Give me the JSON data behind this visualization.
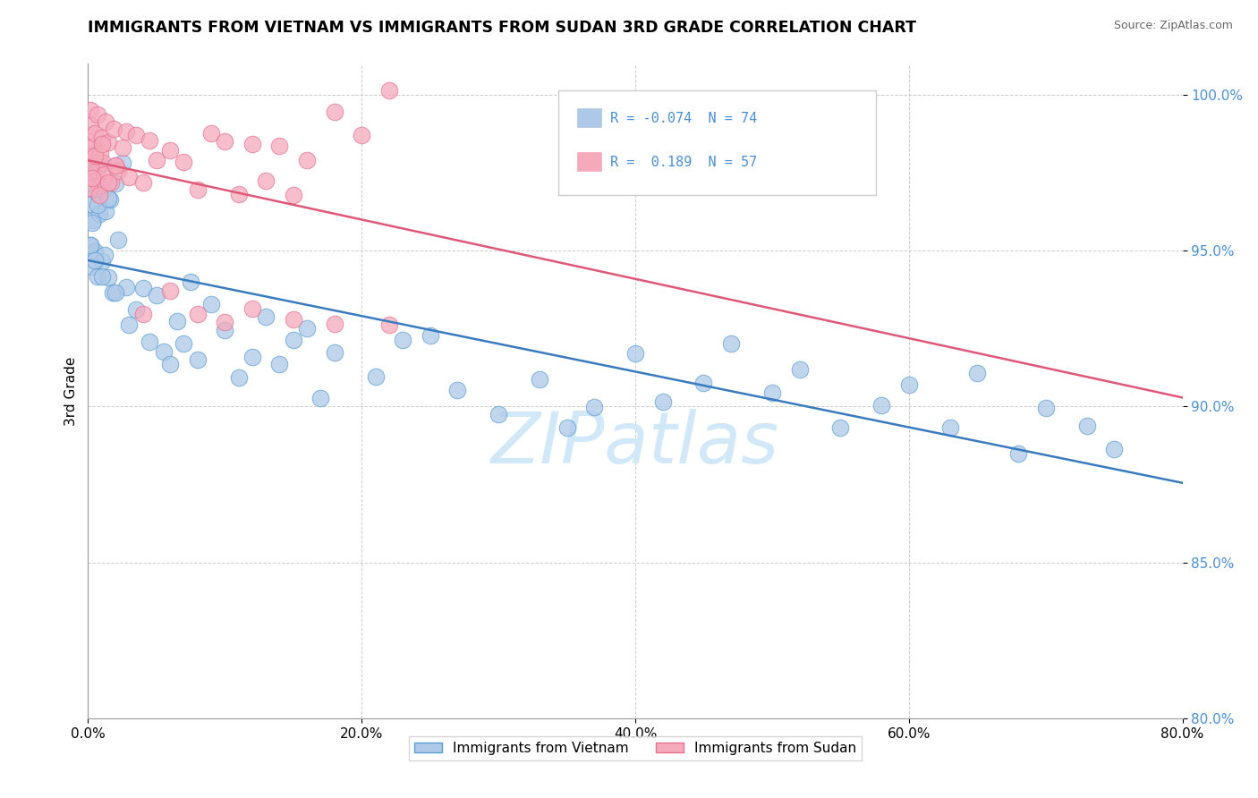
{
  "title": "IMMIGRANTS FROM VIETNAM VS IMMIGRANTS FROM SUDAN 3RD GRADE CORRELATION CHART",
  "source": "Source: ZipAtlas.com",
  "ylabel": "3rd Grade",
  "legend_label1": "Immigrants from Vietnam",
  "legend_label2": "Immigrants from Sudan",
  "legend_R1": "-0.074",
  "legend_N1": "74",
  "legend_R2": " 0.189",
  "legend_N2": "57",
  "xlim": [
    0.0,
    80.0
  ],
  "ylim": [
    80.0,
    101.0
  ],
  "xtick_values": [
    0,
    20,
    40,
    60,
    80
  ],
  "xtick_labels": [
    "0.0%",
    "20.0%",
    "40.0%",
    "60.0%",
    "80.0%"
  ],
  "ytick_values": [
    80,
    85,
    90,
    95,
    100
  ],
  "ytick_labels": [
    "80.0%",
    "85.0%",
    "90.0%",
    "95.0%",
    "100.0%"
  ],
  "color_vietnam": "#adc8e8",
  "color_sudan": "#f5aabc",
  "edge_vietnam": "#5a9fd4",
  "edge_sudan": "#e87090",
  "trendline_vietnam": "#3a7bbf",
  "trendline_sudan": "#e05878",
  "watermark_color": "#d0e8f8",
  "grid_color": "#cccccc",
  "ytick_color": "#4a90d9",
  "title_color": "#000000",
  "source_color": "#666666"
}
